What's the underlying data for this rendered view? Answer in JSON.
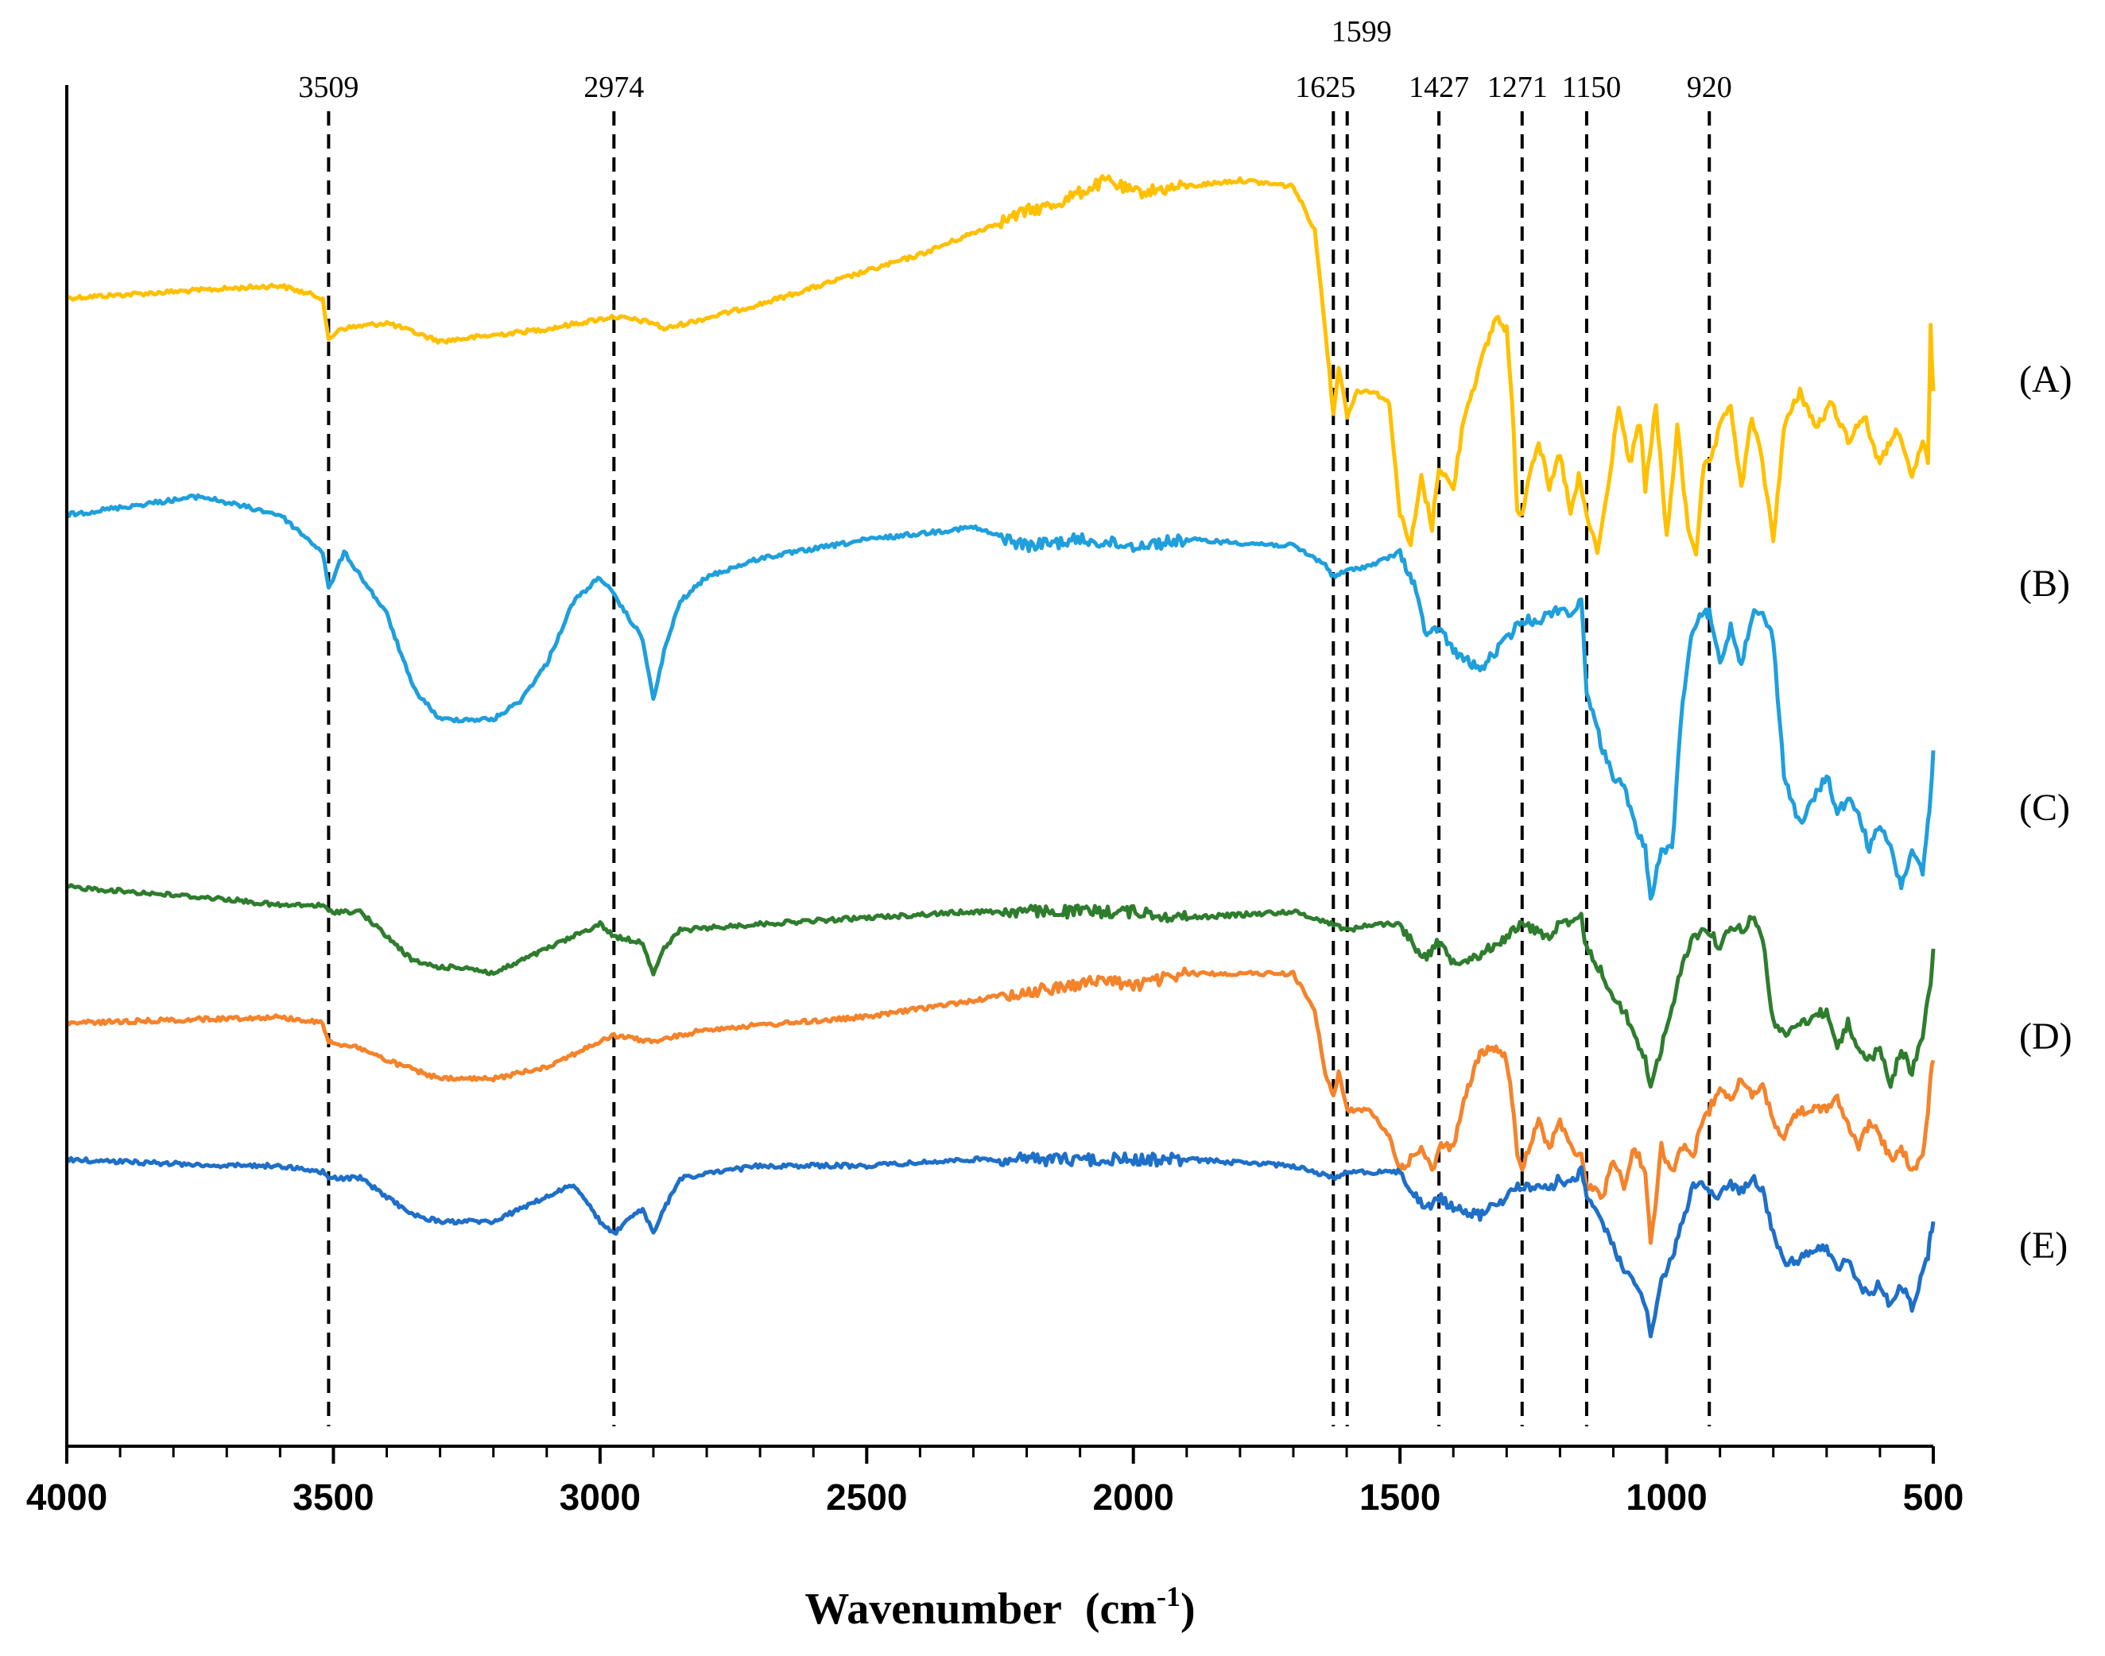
{
  "chart_data": {
    "type": "line",
    "title": "",
    "xlabel": "Wavenumber",
    "xlabel_unit_base": "(cm",
    "xlabel_unit_sup": "-1",
    "xlabel_unit_end": ")",
    "ylabel": "",
    "xlim": [
      4000,
      500
    ],
    "x_ticks": [
      4000,
      3500,
      3000,
      2500,
      2000,
      1500,
      1000,
      500
    ],
    "x_tick_labels": [
      "4000",
      "3500",
      "3000",
      "2500",
      "2000",
      "1500",
      "1000",
      "500"
    ],
    "peak_markers": [
      3509,
      2974,
      1625,
      1599,
      1427,
      1271,
      1150,
      920
    ],
    "peak_labels": [
      "3509",
      "2974",
      "1625",
      "1599",
      "1427",
      "1271",
      "1150",
      "920"
    ],
    "series": [
      {
        "name": "(A)",
        "color": "#FFC000",
        "noise": 5,
        "x": [
          4000,
          3600,
          3520,
          3509,
          3490,
          3400,
          3300,
          3100,
          2974,
          2900,
          2880,
          2700,
          2400,
          2200,
          2150,
          2050,
          2000,
          1900,
          1800,
          1700,
          1660,
          1640,
          1625,
          1615,
          1599,
          1580,
          1550,
          1520,
          1500,
          1480,
          1460,
          1440,
          1427,
          1400,
          1380,
          1350,
          1320,
          1300,
          1290,
          1280,
          1271,
          1260,
          1240,
          1220,
          1200,
          1180,
          1165,
          1150,
          1130,
          1110,
          1090,
          1070,
          1050,
          1040,
          1020,
          1000,
          980,
          960,
          945,
          930,
          920,
          900,
          880,
          860,
          840,
          820,
          800,
          780,
          750,
          720,
          690,
          660,
          630,
          600,
          570,
          540,
          520,
          510,
          505,
          500
        ],
        "y": [
          37.5,
          36.5,
          37.5,
          41.0,
          40.0,
          39.5,
          41.0,
          40.0,
          39.0,
          39.5,
          40.0,
          38.0,
          34.0,
          30.5,
          30.0,
          28.0,
          29.0,
          28.5,
          28.0,
          28.5,
          32.0,
          40.0,
          47.0,
          43.0,
          47.0,
          45.0,
          45.0,
          46.0,
          55.0,
          57.5,
          52.0,
          56.0,
          51.0,
          53.0,
          47.0,
          43.0,
          39.0,
          40.0,
          46.0,
          54.5,
          55.0,
          52.0,
          49.0,
          53.0,
          50.0,
          55.0,
          52.0,
          55.0,
          58.0,
          53.0,
          46.0,
          51.0,
          47.5,
          53.0,
          46.0,
          57.0,
          48.0,
          56.0,
          58.0,
          51.0,
          51.0,
          48.0,
          46.0,
          53.0,
          47.0,
          51.0,
          57.0,
          48.0,
          45.0,
          48.0,
          46.0,
          49.0,
          47.0,
          51.0,
          48.0,
          52.0,
          49.0,
          51.0,
          40.0,
          45.0
        ]
      },
      {
        "name": "(B)",
        "color": "#1F9FDC",
        "noise": 5,
        "x": [
          4000,
          3750,
          3600,
          3520,
          3509,
          3480,
          3400,
          3350,
          3300,
          3250,
          3200,
          3150,
          3100,
          3050,
          3000,
          2974,
          2920,
          2900,
          2880,
          2850,
          2800,
          2700,
          2500,
          2300,
          2200,
          2100,
          2000,
          1900,
          1700,
          1640,
          1625,
          1599,
          1550,
          1500,
          1470,
          1450,
          1427,
          1400,
          1350,
          1300,
          1271,
          1240,
          1200,
          1180,
          1160,
          1150,
          1120,
          1100,
          1080,
          1060,
          1040,
          1030,
          1010,
          990,
          970,
          950,
          930,
          920,
          900,
          880,
          860,
          840,
          820,
          800,
          780,
          750,
          700,
          680,
          660,
          640,
          620,
          600,
          580,
          560,
          540,
          520,
          510,
          505,
          500
        ],
        "y": [
          55.0,
          53.5,
          55.0,
          58.0,
          61.0,
          58.0,
          63.0,
          69.0,
          71.5,
          71.5,
          71.5,
          70.0,
          67.0,
          62.0,
          60.0,
          61.5,
          65.0,
          70.0,
          66.0,
          62.0,
          60.0,
          58.5,
          57.0,
          56.0,
          57.5,
          57.0,
          57.5,
          57.0,
          57.5,
          59.0,
          60.0,
          59.5,
          59.0,
          58.0,
          61.0,
          65.0,
          64.0,
          66.0,
          67.5,
          65.0,
          63.5,
          63.5,
          62.5,
          63.0,
          62.0,
          69.0,
          74.0,
          76.0,
          77.0,
          80.0,
          82.0,
          86.0,
          82.0,
          82.0,
          70.0,
          64.0,
          63.0,
          63.0,
          67.0,
          64.0,
          67.0,
          63.0,
          63.0,
          65.0,
          76.0,
          80.0,
          76.0,
          79.0,
          78.0,
          79.0,
          82.0,
          80.0,
          82.0,
          85.0,
          82.0,
          84.0,
          80.0,
          78.0,
          74.0
        ]
      },
      {
        "name": "(C)",
        "color": "#2E7D2E",
        "noise": 5,
        "x": [
          4000,
          3700,
          3600,
          3520,
          3509,
          3450,
          3400,
          3350,
          3300,
          3250,
          3200,
          3150,
          3100,
          3050,
          3000,
          2974,
          2920,
          2900,
          2880,
          2850,
          2700,
          2500,
          2300,
          2200,
          2100,
          2000,
          1900,
          1700,
          1625,
          1599,
          1550,
          1500,
          1470,
          1450,
          1427,
          1400,
          1350,
          1300,
          1271,
          1220,
          1200,
          1180,
          1160,
          1150,
          1120,
          1100,
          1080,
          1060,
          1040,
          1030,
          1010,
          990,
          970,
          950,
          930,
          920,
          900,
          880,
          860,
          840,
          820,
          800,
          780,
          750,
          700,
          680,
          660,
          640,
          620,
          600,
          580,
          560,
          540,
          520,
          510,
          505,
          500
        ],
        "y": [
          85.0,
          86.0,
          86.5,
          86.5,
          87.0,
          87.0,
          89.0,
          91.0,
          91.5,
          91.5,
          92.0,
          91.0,
          90.0,
          89.0,
          88.0,
          89.0,
          89.5,
          92.0,
          90.0,
          88.5,
          88.0,
          87.5,
          87.0,
          87.0,
          87.0,
          87.0,
          87.5,
          87.0,
          88.0,
          88.5,
          88.0,
          88.0,
          90.0,
          90.5,
          89.5,
          91.0,
          90.5,
          89.0,
          88.0,
          89.0,
          88.0,
          88.0,
          87.5,
          90.0,
          92.0,
          94.0,
          95.0,
          97.0,
          99.0,
          101.0,
          98.0,
          95.0,
          91.0,
          89.0,
          88.5,
          88.5,
          90.0,
          88.0,
          88.5,
          87.5,
          89.0,
          96.0,
          97.0,
          96.0,
          95.0,
          98.0,
          96.0,
          98.0,
          99.0,
          98.0,
          101.0,
          98.0,
          100.0,
          97.0,
          94.0,
          93.0,
          90.0
        ]
      },
      {
        "name": "(D)",
        "color": "#F5832B",
        "noise": 5,
        "x": [
          4000,
          3600,
          3520,
          3509,
          3450,
          3400,
          3300,
          3200,
          3100,
          3000,
          2974,
          2900,
          2800,
          2500,
          2200,
          2050,
          2000,
          1900,
          1700,
          1660,
          1640,
          1625,
          1615,
          1599,
          1560,
          1520,
          1500,
          1480,
          1460,
          1440,
          1427,
          1400,
          1380,
          1350,
          1320,
          1300,
          1290,
          1280,
          1271,
          1240,
          1220,
          1200,
          1180,
          1160,
          1150,
          1120,
          1100,
          1080,
          1060,
          1040,
          1030,
          1010,
          990,
          970,
          950,
          935,
          920,
          900,
          880,
          860,
          840,
          820,
          800,
          780,
          750,
          700,
          680,
          660,
          640,
          620,
          600,
          580,
          560,
          540,
          520,
          510,
          505,
          500
        ],
        "y": [
          96.0,
          95.5,
          96.0,
          97.5,
          98.0,
          99.0,
          100.5,
          100.5,
          99.5,
          97.5,
          97.0,
          97.5,
          96.5,
          95.5,
          93.5,
          92.5,
          93.0,
          92.0,
          92.0,
          95.0,
          100.0,
          102.0,
          100.0,
          103.0,
          103.0,
          105.0,
          108.0,
          107.0,
          106.0,
          108.0,
          106.0,
          106.0,
          102.0,
          98.5,
          98.0,
          99.0,
          102.0,
          107.0,
          107.5,
          104.0,
          106.0,
          104.0,
          106.0,
          106.5,
          109.0,
          110.0,
          107.0,
          109.0,
          106.0,
          108.0,
          114.0,
          106.0,
          108.0,
          106.0,
          107.0,
          104.0,
          103.0,
          101.0,
          102.0,
          100.5,
          102.0,
          101.0,
          104.0,
          105.0,
          103.0,
          103.0,
          102.0,
          104.0,
          106.0,
          104.0,
          105.0,
          107.0,
          106.0,
          108.0,
          107.0,
          103.0,
          100.0,
          99.0
        ]
      },
      {
        "name": "(E)",
        "color": "#1E6FC8",
        "noise": 5,
        "x": [
          4000,
          3700,
          3600,
          3520,
          3509,
          3450,
          3400,
          3350,
          3300,
          3250,
          3200,
          3150,
          3100,
          3050,
          3000,
          2974,
          2950,
          2920,
          2900,
          2880,
          2850,
          2700,
          2500,
          2300,
          2200,
          2100,
          2000,
          1900,
          1700,
          1625,
          1599,
          1550,
          1500,
          1470,
          1450,
          1427,
          1400,
          1350,
          1300,
          1271,
          1220,
          1200,
          1180,
          1160,
          1150,
          1120,
          1100,
          1080,
          1060,
          1040,
          1030,
          1010,
          990,
          970,
          950,
          930,
          920,
          900,
          880,
          860,
          840,
          820,
          800,
          780,
          750,
          700,
          680,
          660,
          640,
          620,
          600,
          580,
          560,
          540,
          520,
          510,
          505,
          500
        ],
        "y": [
          107.0,
          107.5,
          107.5,
          108.0,
          108.5,
          108.5,
          110.0,
          111.5,
          112.0,
          112.0,
          112.0,
          111.0,
          110.0,
          109.0,
          112.0,
          113.0,
          112.0,
          111.0,
          113.0,
          111.0,
          108.5,
          107.5,
          107.5,
          107.0,
          107.0,
          107.0,
          107.0,
          107.0,
          107.5,
          108.5,
          108.0,
          108.0,
          108.0,
          110.0,
          111.0,
          110.0,
          111.0,
          111.5,
          110.0,
          109.0,
          109.5,
          108.5,
          109.0,
          108.0,
          110.0,
          112.0,
          114.0,
          116.0,
          117.0,
          119.0,
          121.0,
          117.0,
          115.0,
          112.0,
          109.0,
          109.0,
          109.5,
          110.0,
          109.0,
          109.5,
          108.5,
          109.5,
          113.0,
          115.5,
          115.0,
          114.0,
          116.0,
          115.0,
          117.0,
          118.0,
          117.0,
          119.0,
          117.0,
          119.0,
          116.0,
          115.0,
          113.0,
          112.0
        ]
      }
    ]
  }
}
